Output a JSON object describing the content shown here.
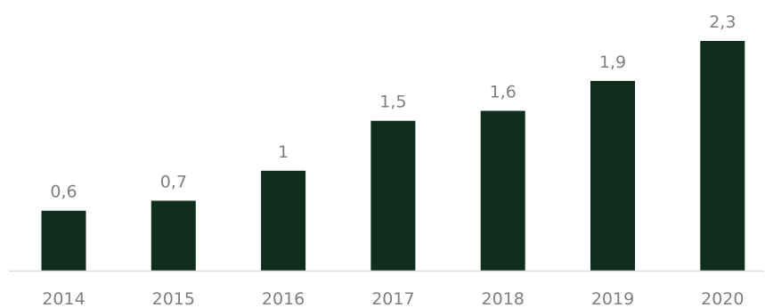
{
  "chart_data": {
    "type": "bar",
    "categories": [
      "2014",
      "2015",
      "2016",
      "2017",
      "2018",
      "2019",
      "2020"
    ],
    "values": [
      0.6,
      0.7,
      1,
      1.5,
      1.6,
      1.9,
      2.3
    ],
    "value_labels": [
      "0,6",
      "0,7",
      "1",
      "1,5",
      "1,6",
      "1,9",
      "2,3"
    ],
    "title": "",
    "xlabel": "",
    "ylabel": "",
    "ylim": [
      0,
      2.3
    ],
    "grid": false,
    "legend": "none",
    "colors": {
      "bar": "#0f2e1e",
      "label": "#7f7f7f",
      "axis": "#d9d9d9"
    }
  }
}
